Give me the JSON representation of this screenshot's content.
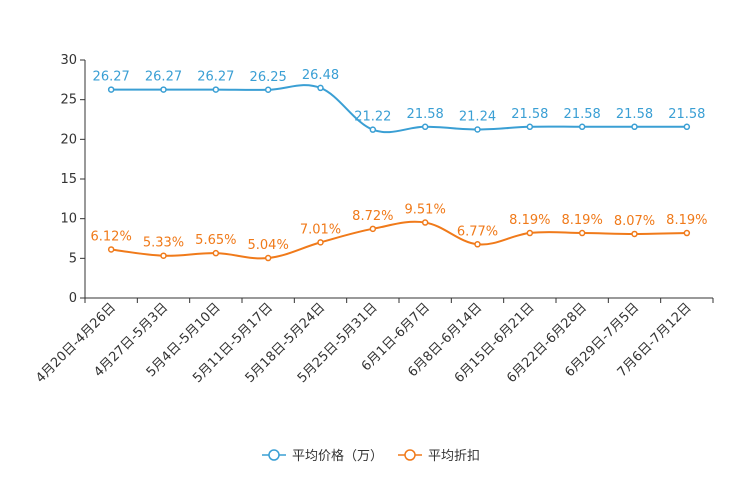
{
  "chart_data": {
    "type": "line",
    "title": "",
    "xlabel": "",
    "ylabel": "",
    "ylim": [
      0,
      30
    ],
    "yticks": [
      0,
      5,
      10,
      15,
      20,
      25,
      30
    ],
    "grid": false,
    "legend_position": "bottom-center",
    "categories": [
      "4月20日-4月26日",
      "4月27日-5月3日",
      "5月4日-5月10日",
      "5月11日-5月17日",
      "5月18日-5月24日",
      "5月25日-5月31日",
      "6月1日-6月7日",
      "6月8日-6月14日",
      "6月15日-6月21日",
      "6月22日-6月28日",
      "6月29日-7月5日",
      "7月6日-7月12日"
    ],
    "series": [
      {
        "name": "平均价格（万）",
        "color": "#3a9fd4",
        "values": [
          26.27,
          26.27,
          26.27,
          26.25,
          26.48,
          21.22,
          21.58,
          21.24,
          21.58,
          21.58,
          21.58,
          21.58
        ],
        "labels": [
          "26.27",
          "26.27",
          "26.27",
          "26.25",
          "26.48",
          "21.22",
          "21.58",
          "21.24",
          "21.58",
          "21.58",
          "21.58",
          "21.58"
        ]
      },
      {
        "name": "平均折扣",
        "color": "#f07a1a",
        "values": [
          6.12,
          5.33,
          5.65,
          5.04,
          7.01,
          8.72,
          9.51,
          6.77,
          8.19,
          8.19,
          8.07,
          8.19
        ],
        "labels": [
          "6.12%",
          "5.33%",
          "5.65%",
          "5.04%",
          "7.01%",
          "8.72%",
          "9.51%",
          "6.77%",
          "8.19%",
          "8.19%",
          "8.07%",
          "8.19%"
        ]
      }
    ]
  }
}
